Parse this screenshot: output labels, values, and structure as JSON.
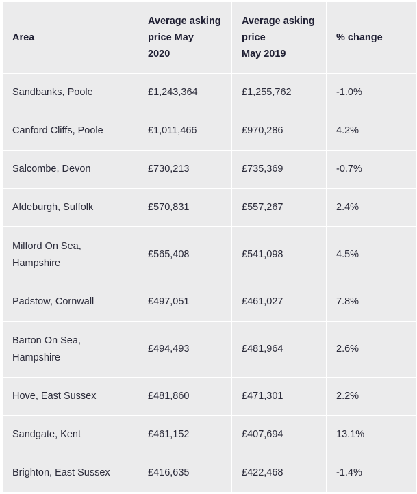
{
  "table": {
    "headers": {
      "area": "Area",
      "price_2020": [
        "Average asking",
        "price May",
        "2020"
      ],
      "price_2019": [
        "Average asking",
        "price",
        "May 2019"
      ],
      "change": "% change"
    },
    "rows": [
      {
        "area": [
          "Sandbanks, Poole"
        ],
        "price_2020": "£1,243,364",
        "price_2019": "£1,255,762",
        "change": "-1.0%"
      },
      {
        "area": [
          "Canford Cliffs, Poole"
        ],
        "price_2020": "£1,011,466",
        "price_2019": "£970,286",
        "change": "4.2%"
      },
      {
        "area": [
          "Salcombe, Devon"
        ],
        "price_2020": "£730,213",
        "price_2019": "£735,369",
        "change": "-0.7%"
      },
      {
        "area": [
          "Aldeburgh, Suffolk"
        ],
        "price_2020": "£570,831",
        "price_2019": "£557,267",
        "change": "2.4%"
      },
      {
        "area": [
          "Milford On Sea,",
          "Hampshire"
        ],
        "price_2020": "£565,408",
        "price_2019": "£541,098",
        "change": "4.5%"
      },
      {
        "area": [
          "Padstow, Cornwall"
        ],
        "price_2020": "£497,051",
        "price_2019": "£461,027",
        "change": "7.8%"
      },
      {
        "area": [
          "Barton On Sea,",
          "Hampshire"
        ],
        "price_2020": "£494,493",
        "price_2019": "£481,964",
        "change": "2.6%"
      },
      {
        "area": [
          "Hove, East Sussex"
        ],
        "price_2020": "£481,860",
        "price_2019": "£471,301",
        "change": "2.2%"
      },
      {
        "area": [
          "Sandgate, Kent"
        ],
        "price_2020": "£461,152",
        "price_2019": "£407,694",
        "change": "13.1%"
      },
      {
        "area": [
          "Brighton, East Sussex"
        ],
        "price_2020": "£416,635",
        "price_2019": "£422,468",
        "change": "-1.4%"
      }
    ]
  },
  "colors": {
    "cell_background": "#ebebec",
    "grid_lines": "#ffffff",
    "text": "#262637"
  }
}
